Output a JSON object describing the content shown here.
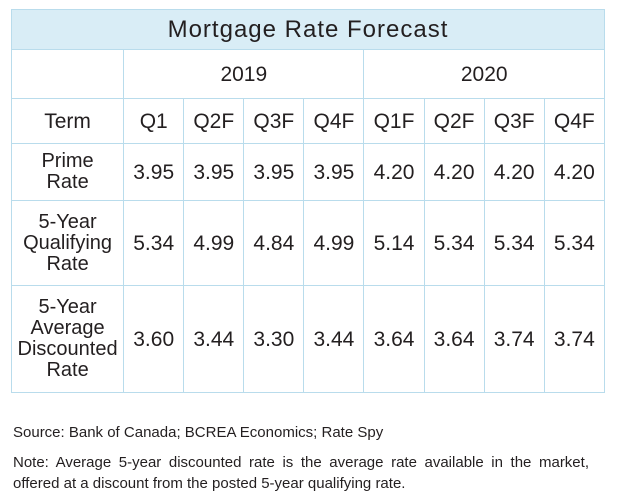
{
  "title": "Mortgage Rate Forecast",
  "years": [
    "2019",
    "2020"
  ],
  "header": {
    "term_label": "Term",
    "quarters": [
      "Q1",
      "Q2F",
      "Q3F",
      "Q4F",
      "Q1F",
      "Q2F",
      "Q3F",
      "Q4F"
    ]
  },
  "rows": [
    {
      "label_lines": [
        "Prime",
        "Rate"
      ],
      "values": [
        "3.95",
        "3.95",
        "3.95",
        "3.95",
        "4.20",
        "4.20",
        "4.20",
        "4.20"
      ]
    },
    {
      "label_lines": [
        "5-Year",
        "Qualifying",
        "Rate"
      ],
      "values": [
        "5.34",
        "4.99",
        "4.84",
        "4.99",
        "5.14",
        "5.34",
        "5.34",
        "5.34"
      ]
    },
    {
      "label_lines": [
        "5-Year",
        "Average",
        "Discounted",
        "Rate"
      ],
      "values": [
        "3.60",
        "3.44",
        "3.30",
        "3.44",
        "3.64",
        "3.64",
        "3.74",
        "3.74"
      ]
    }
  ],
  "source": "Source: Bank of Canada; BCREA Economics; Rate Spy",
  "note": "Note: Average 5-year discounted rate is the average rate available in the market, offered at a discount from the posted 5-year qualifying rate.",
  "colors": {
    "title_background": "#d9edf6",
    "border": "#b9dcec",
    "text": "#231f20"
  }
}
